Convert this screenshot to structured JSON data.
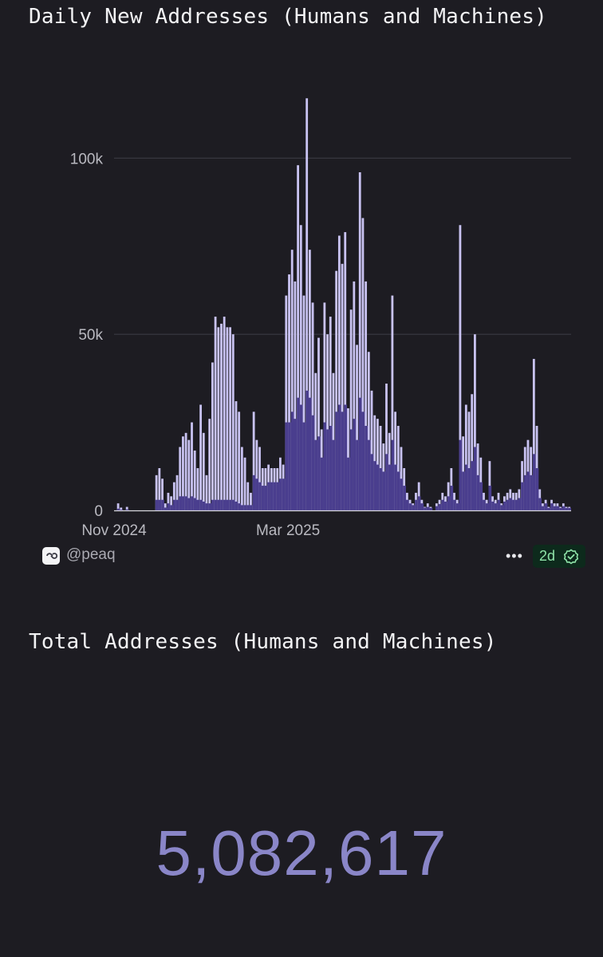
{
  "header": {
    "title": "Daily New Addresses (Humans and Machines)"
  },
  "chart_data": {
    "type": "bar",
    "title": "Daily New Addresses (Humans and Machines)",
    "xlabel": "",
    "ylabel": "",
    "ylim": [
      0,
      120000
    ],
    "y_ticks": [
      0,
      50000,
      100000
    ],
    "y_tick_labels": [
      "0",
      "50k",
      "100k"
    ],
    "x_tick_labels": [
      "Nov 2024",
      "Mar 2025"
    ],
    "x_tick_index": [
      0,
      59
    ],
    "grid": true,
    "colors": {
      "light": "#c9c3f2",
      "dark": "#4a3e8e",
      "grid": "#3a3a42",
      "axis": "#d8d8de"
    },
    "series": [
      {
        "values": [
          0,
          2000,
          800,
          0,
          1000,
          0,
          0,
          0,
          0,
          0,
          0,
          0,
          0,
          0,
          10000,
          12000,
          9000,
          2000,
          5000,
          4000,
          8000,
          10000,
          18000,
          21000,
          22000,
          20000,
          25000,
          17000,
          12000,
          30000,
          22000,
          10000,
          26000,
          42000,
          55000,
          52000,
          53000,
          55000,
          52000,
          52000,
          50000,
          31000,
          28000,
          18000,
          15000,
          8000,
          5000,
          28000,
          20000,
          18000,
          12000,
          12000,
          13000,
          12000,
          12000,
          12000,
          15000,
          13000,
          61000,
          67000,
          74000,
          65000,
          98000,
          81000,
          61000,
          117000,
          74000,
          59000,
          39000,
          49000,
          23000,
          59000,
          50000,
          55000,
          39000,
          68000,
          78000,
          70000,
          79000,
          29000,
          57000,
          65000,
          47000,
          96000,
          83000,
          65000,
          45000,
          34000,
          27000,
          26000,
          24000,
          19000,
          36000,
          22000,
          61000,
          28000,
          24000,
          18000,
          12000,
          5000,
          3000,
          2000,
          5000,
          8000,
          3000,
          1000,
          2000,
          1000,
          0,
          2000,
          3000,
          5000,
          4000,
          8000,
          12000,
          5000,
          3000,
          81000,
          21000,
          30000,
          28000,
          33000,
          50000,
          19000,
          15000,
          5000,
          3000,
          14000,
          4000,
          3000,
          5000,
          2000,
          4000,
          5000,
          6000,
          5000,
          5000,
          6000,
          14000,
          18000,
          20000,
          18000,
          43000,
          24000,
          6000,
          2000,
          3000,
          1000,
          3000,
          2000,
          2000,
          1000,
          2000,
          1000,
          1000
        ],
        "dark_values": [
          0,
          500,
          200,
          0,
          300,
          0,
          0,
          0,
          0,
          0,
          0,
          0,
          0,
          0,
          3000,
          3000,
          3000,
          800,
          2000,
          1500,
          3000,
          3000,
          4000,
          4000,
          4000,
          3500,
          4000,
          3500,
          3000,
          3000,
          2500,
          2000,
          2000,
          3000,
          3000,
          3000,
          3000,
          3000,
          3000,
          3000,
          3000,
          2500,
          2000,
          1500,
          1500,
          1500,
          1500,
          10000,
          9000,
          8000,
          7000,
          7000,
          8000,
          8000,
          8000,
          8000,
          9000,
          9000,
          25000,
          25000,
          28000,
          26000,
          32000,
          30000,
          25000,
          34000,
          32000,
          27000,
          20000,
          21000,
          15000,
          25000,
          23000,
          24000,
          20000,
          28000,
          30000,
          28000,
          30000,
          15000,
          23000,
          26000,
          20000,
          32000,
          28000,
          24000,
          20000,
          16000,
          14000,
          13000,
          12000,
          11000,
          16000,
          13000,
          20000,
          13000,
          11000,
          9000,
          7000,
          3000,
          2000,
          1500,
          3000,
          4000,
          2000,
          800,
          1000,
          700,
          0,
          1200,
          1800,
          3000,
          2500,
          4000,
          7000,
          3000,
          2000,
          20000,
          11000,
          13000,
          12000,
          14000,
          18000,
          10000,
          8000,
          3000,
          2000,
          7000,
          2500,
          2000,
          3000,
          1500,
          2500,
          3000,
          3500,
          3000,
          3000,
          3500,
          8000,
          10000,
          11000,
          10000,
          16000,
          12000,
          3500,
          1200,
          2000,
          700,
          2000,
          1200,
          1200,
          700,
          1200,
          700,
          700
        ]
      }
    ]
  },
  "footer": {
    "handle": "@peaq",
    "logo_icon": "dune-logo-icon",
    "more_icon": "more-dots-icon",
    "freshness": "2d",
    "freshness_icon": "check-badge-icon"
  },
  "total": {
    "title": "Total Addresses (Humans and Machines)",
    "value": "5,082,617"
  }
}
